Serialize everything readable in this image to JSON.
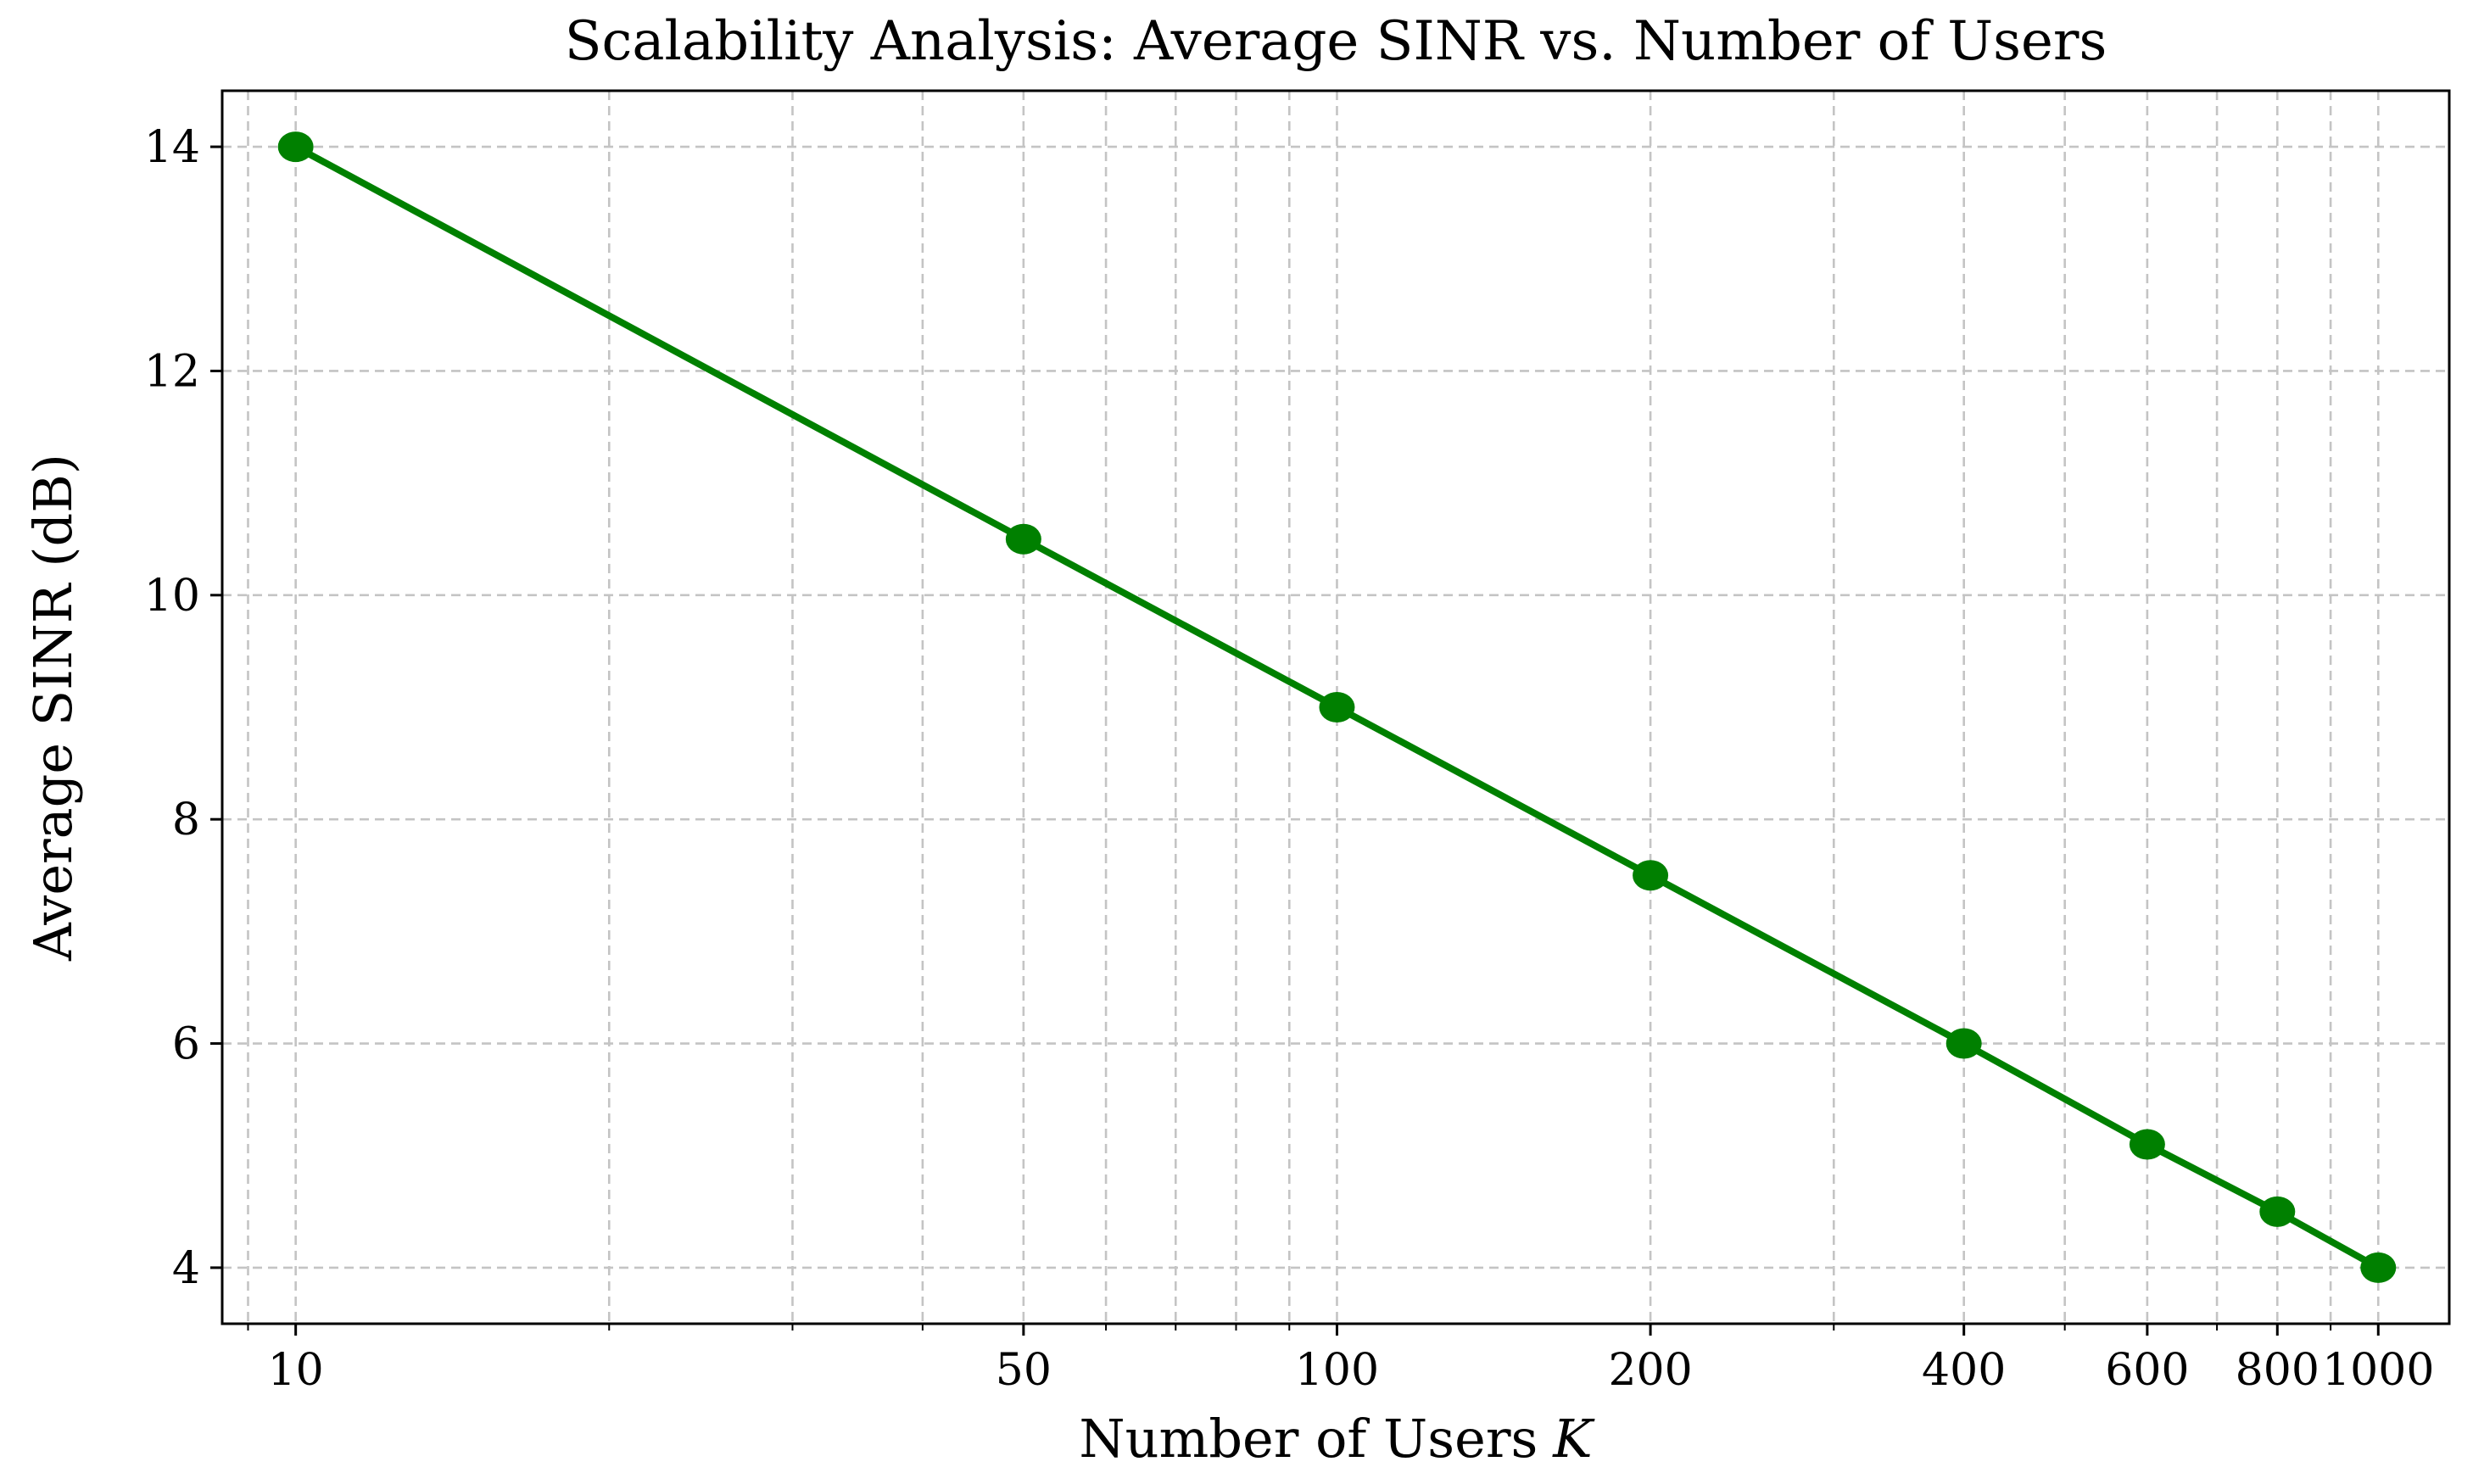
{
  "chart_data": {
    "type": "line",
    "title": "Scalability Analysis: Average SINR vs. Number of Users",
    "xlabel": "Number of Users",
    "xlabel_symbol": "K",
    "ylabel": "Average SINR (dB)",
    "xscale": "log",
    "xlim": [
      8.5,
      1170
    ],
    "ylim": [
      3.5,
      14.5
    ],
    "grid": true,
    "x_major_ticks": [
      10,
      50,
      100,
      200,
      400,
      600,
      800,
      1000
    ],
    "x_tick_labels": [
      "10",
      "50",
      "100",
      "200",
      "400",
      "600",
      "800",
      "1000"
    ],
    "x_minor_ticks": [
      9,
      20,
      30,
      40,
      60,
      70,
      80,
      90,
      300,
      500,
      700,
      900
    ],
    "y_ticks": [
      4,
      6,
      8,
      10,
      12,
      14
    ],
    "y_tick_labels": [
      "4",
      "6",
      "8",
      "10",
      "12",
      "14"
    ],
    "series": [
      {
        "name": "Average SINR",
        "color": "#008000",
        "marker": "circle",
        "x": [
          10,
          50,
          100,
          200,
          400,
          600,
          800,
          1000
        ],
        "y": [
          14.0,
          10.5,
          9.0,
          7.5,
          6.0,
          5.1,
          4.5,
          4.0
        ]
      }
    ]
  }
}
